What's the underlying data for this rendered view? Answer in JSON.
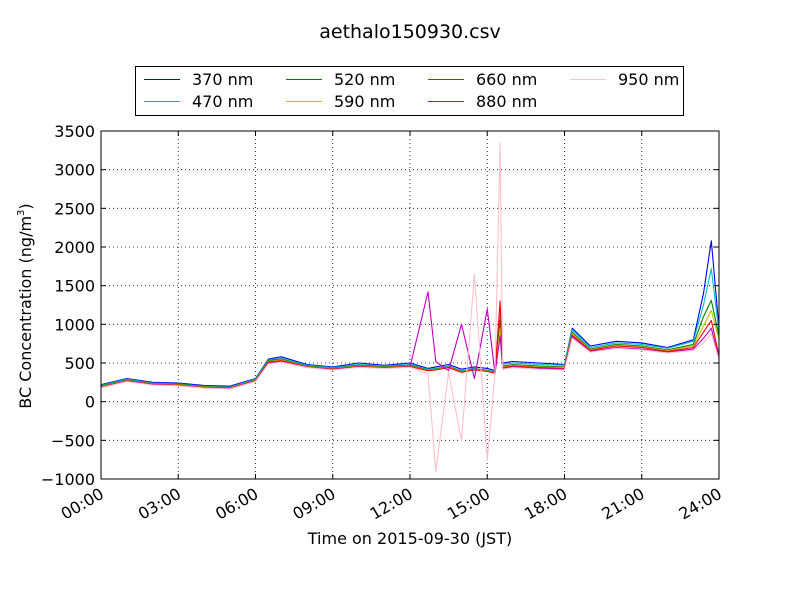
{
  "chart_data": {
    "type": "line",
    "title": "aethalo150930.csv",
    "xlabel": "Time on 2015-09-30 (JST)",
    "ylabel": "BC Concentration (ng/m³)",
    "ylabel_parts": {
      "base": "BC Concentration (ng/m",
      "sup": "3",
      "close": ")"
    },
    "xlim": [
      "00:00",
      "24:00"
    ],
    "ylim": [
      -1000,
      3500
    ],
    "x_ticks": [
      "00:00",
      "03:00",
      "06:00",
      "09:00",
      "12:00",
      "15:00",
      "18:00",
      "21:00",
      "24:00"
    ],
    "y_ticks": [
      "−1000",
      "−500",
      "0",
      "500",
      "1000",
      "1500",
      "2000",
      "2500",
      "3000",
      "3500"
    ],
    "grid": true,
    "legend_position": "top",
    "x_hours": [
      0,
      1,
      2,
      3,
      4,
      5,
      6,
      6.5,
      7,
      8,
      9,
      10,
      11,
      12,
      12.7,
      13,
      13.5,
      14,
      14.5,
      15,
      15.3,
      15.5,
      15.6,
      16,
      17,
      18,
      18.3,
      19,
      20,
      21,
      22,
      23,
      23.4,
      23.7,
      24
    ],
    "series": [
      {
        "name": "370 nm",
        "color": "#0000ff",
        "values": [
          220,
          300,
          250,
          240,
          210,
          200,
          300,
          550,
          580,
          480,
          450,
          500,
          470,
          500,
          430,
          450,
          480,
          420,
          450,
          430,
          400,
          1200,
          500,
          520,
          500,
          480,
          950,
          720,
          780,
          760,
          700,
          800,
          1400,
          2080,
          950
        ]
      },
      {
        "name": "470 nm",
        "color": "#00bfbf",
        "values": [
          210,
          290,
          240,
          230,
          200,
          190,
          290,
          540,
          560,
          470,
          440,
          480,
          460,
          480,
          420,
          430,
          460,
          400,
          430,
          410,
          390,
          1150,
          480,
          500,
          480,
          470,
          930,
          700,
          760,
          740,
          690,
          780,
          1250,
          1720,
          900
        ]
      },
      {
        "name": "520 nm",
        "color": "#008000",
        "values": [
          200,
          280,
          235,
          225,
          195,
          185,
          280,
          530,
          550,
          460,
          430,
          470,
          450,
          470,
          410,
          420,
          450,
          390,
          420,
          400,
          380,
          1050,
          460,
          480,
          460,
          450,
          900,
          680,
          740,
          720,
          670,
          740,
          1100,
          1310,
          850
        ]
      },
      {
        "name": "590 nm",
        "color": "#bfbf00",
        "values": [
          195,
          275,
          230,
          220,
          190,
          180,
          275,
          520,
          540,
          455,
          425,
          460,
          445,
          460,
          405,
          415,
          445,
          385,
          415,
          395,
          375,
          950,
          450,
          470,
          450,
          440,
          880,
          670,
          730,
          710,
          660,
          720,
          980,
          1180,
          800
        ]
      },
      {
        "name": "660 nm",
        "color": "#ff0000",
        "values": [
          190,
          270,
          225,
          215,
          185,
          175,
          270,
          510,
          530,
          450,
          420,
          455,
          440,
          455,
          400,
          410,
          440,
          380,
          410,
          390,
          370,
          1300,
          440,
          460,
          440,
          430,
          860,
          660,
          720,
          700,
          650,
          700,
          900,
          1050,
          600
        ]
      },
      {
        "name": "880 nm",
        "color": "#bf00bf",
        "values": [
          185,
          265,
          220,
          210,
          180,
          170,
          265,
          500,
          520,
          445,
          415,
          450,
          435,
          450,
          1420,
          520,
          400,
          1000,
          300,
          1200,
          360,
          850,
          430,
          450,
          430,
          420,
          840,
          650,
          700,
          680,
          640,
          680,
          820,
          950,
          560
        ]
      },
      {
        "name": "950 nm",
        "color": "#ffc0cb",
        "values": [
          180,
          260,
          215,
          205,
          175,
          165,
          260,
          490,
          510,
          440,
          410,
          445,
          430,
          445,
          360,
          -900,
          380,
          -500,
          1650,
          -750,
          360,
          3350,
          420,
          440,
          420,
          410,
          820,
          640,
          690,
          670,
          630,
          660,
          760,
          880,
          540
        ]
      }
    ]
  }
}
